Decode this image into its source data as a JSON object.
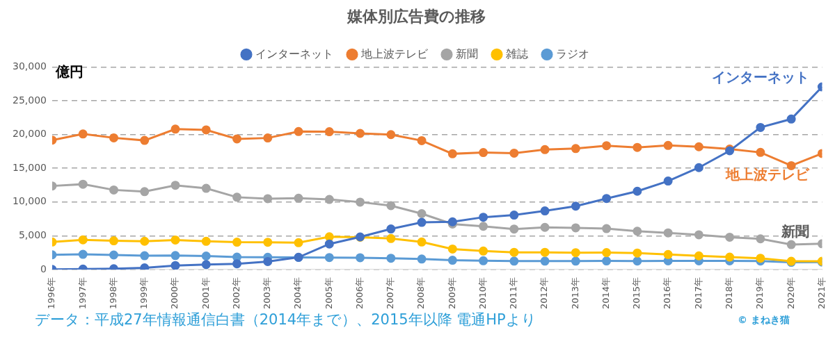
{
  "chart_data": {
    "type": "line",
    "title": "媒体別広告費の推移",
    "ylabel": "億円",
    "source": "データ：平成27年情報通信白書（2014年まで）、2015年以降 電通HPより",
    "credit": "© まねき猫",
    "categories": [
      "1996年",
      "1997年",
      "1998年",
      "1999年",
      "2000年",
      "2001年",
      "2002年",
      "2003年",
      "2004年",
      "2005年",
      "2006年",
      "2007年",
      "2008年",
      "2009年",
      "2010年",
      "2011年",
      "2012年",
      "2013年",
      "2014年",
      "2015年",
      "2016年",
      "2017年",
      "2018年",
      "2019年",
      "2020年",
      "2021年"
    ],
    "series": [
      {
        "name": "インターネット",
        "color": "#4472c4",
        "marker": "circle",
        "values": [
          16,
          60,
          114,
          241,
          590,
          735,
          845,
          1183,
          1814,
          3777,
          4826,
          6003,
          6983,
          7069,
          7747,
          8062,
          8680,
          9381,
          10519,
          11594,
          13100,
          15094,
          17589,
          21048,
          22290,
          27052
        ]
      },
      {
        "name": "地上波テレビ",
        "color": "#ed7d31",
        "marker": "circle",
        "values": [
          19162,
          20079,
          19505,
          19121,
          20793,
          20681,
          19351,
          19480,
          20436,
          20411,
          20161,
          19981,
          19092,
          17139,
          17321,
          17237,
          17757,
          17913,
          18347,
          18088,
          18374,
          18178,
          17848,
          17345,
          15386,
          17184
        ]
      },
      {
        "name": "新聞",
        "color": "#a5a5a5",
        "marker": "circle",
        "values": [
          12379,
          12636,
          11787,
          11535,
          12474,
          12027,
          10707,
          10500,
          10559,
          10377,
          9986,
          9462,
          8276,
          6739,
          6396,
          5990,
          6242,
          6170,
          6057,
          5679,
          5431,
          5147,
          4784,
          4547,
          3688,
          3815
        ]
      },
      {
        "name": "雑誌",
        "color": "#ffc000",
        "marker": "circle",
        "values": [
          4073,
          4395,
          4258,
          4183,
          4369,
          4180,
          4051,
          4035,
          3970,
          4842,
          4777,
          4585,
          4078,
          3034,
          2733,
          2542,
          2551,
          2499,
          2500,
          2443,
          2223,
          2023,
          1841,
          1675,
          1223,
          1224
        ]
      },
      {
        "name": "ラジオ",
        "color": "#5b9bd5",
        "marker": "circle",
        "values": [
          2181,
          2247,
          2153,
          2043,
          2071,
          1998,
          1837,
          1807,
          1795,
          1778,
          1744,
          1671,
          1549,
          1370,
          1299,
          1247,
          1246,
          1243,
          1272,
          1254,
          1285,
          1290,
          1278,
          1260,
          1066,
          1106
        ]
      }
    ],
    "annotations": [
      {
        "text": "インターネット"
      },
      {
        "text": "地上波テレビ"
      },
      {
        "text": "新聞"
      }
    ],
    "ylim": [
      0,
      30000
    ],
    "yticks": [
      0,
      {
        "value": 5000,
        "label": "5,000"
      },
      {
        "value": 10000,
        "label": "10,000"
      },
      {
        "value": 15000,
        "label": "15,000"
      },
      {
        "value": 20000,
        "label": "20,000"
      },
      {
        "value": 25000,
        "label": "25,000"
      },
      {
        "value": 30000,
        "label": "30,000"
      }
    ],
    "grid": true,
    "legend": "top"
  }
}
